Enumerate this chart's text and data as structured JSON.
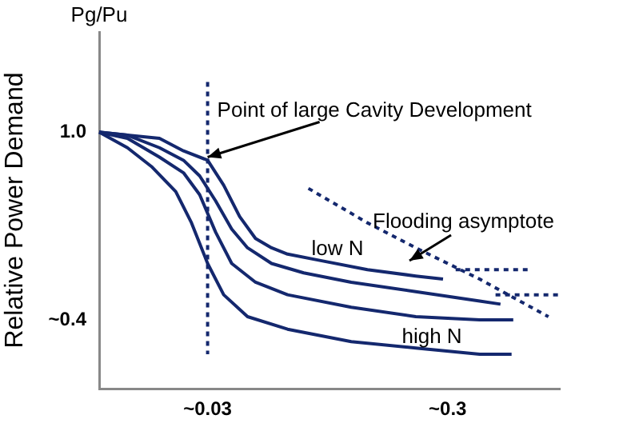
{
  "chart_data": {
    "type": "line",
    "ylabel": "Relative Power Demand",
    "log": "x",
    "xlim": [
      0.0106,
      0.88
    ],
    "ylim": [
      0.18,
      1.32
    ],
    "xticks": [
      {
        "value": 0.03,
        "label": "~0.03"
      },
      {
        "value": 0.3,
        "label": "~0.3"
      }
    ],
    "yticks": [
      {
        "value": 1.0,
        "label": "1.0"
      },
      {
        "value": 0.4,
        "label": "~0.4"
      }
    ],
    "grid": false,
    "legend": false,
    "marker": "none",
    "annotations": [
      "Pg/Pu",
      {
        "text": "Point of large Cavity Development",
        "x": 0.03,
        "y": 0.92
      },
      "Flooding asymptote",
      "low N",
      "high N"
    ],
    "series": [
      {
        "color": "#14286e",
        "line_style": "solid",
        "x": [
          0.0106,
          0.0139,
          0.0189,
          0.0238,
          0.03,
          0.035,
          0.0408,
          0.0475,
          0.0554,
          0.0646,
          0.0879,
          0.139,
          0.221,
          0.287
        ],
        "values": [
          1.0,
          0.99,
          0.98,
          0.94,
          0.91,
          0.83,
          0.73,
          0.66,
          0.63,
          0.61,
          0.59,
          0.56,
          0.54,
          0.53
        ]
      },
      {
        "color": "#14286e",
        "line_style": "solid",
        "x": [
          0.0106,
          0.0139,
          0.0189,
          0.0238,
          0.0278,
          0.0324,
          0.0378,
          0.044,
          0.0554,
          0.0754,
          0.119,
          0.221,
          0.408,
          0.498
        ],
        "values": [
          1.0,
          0.99,
          0.95,
          0.91,
          0.86,
          0.78,
          0.69,
          0.63,
          0.58,
          0.55,
          0.52,
          0.49,
          0.46,
          0.45
        ]
      },
      {
        "color": "#14286e",
        "line_style": "solid",
        "x": [
          0.0106,
          0.0139,
          0.0189,
          0.0238,
          0.0278,
          0.0324,
          0.0378,
          0.0475,
          0.0646,
          0.119,
          0.221,
          0.408,
          0.563
        ],
        "values": [
          1.0,
          0.98,
          0.92,
          0.87,
          0.8,
          0.68,
          0.58,
          0.52,
          0.48,
          0.44,
          0.41,
          0.4,
          0.4
        ]
      },
      {
        "color": "#14286e",
        "line_style": "solid",
        "x": [
          0.0106,
          0.0139,
          0.0175,
          0.0221,
          0.0257,
          0.03,
          0.035,
          0.044,
          0.0646,
          0.119,
          0.221,
          0.408,
          0.554
        ],
        "values": [
          1.0,
          0.95,
          0.89,
          0.81,
          0.71,
          0.58,
          0.48,
          0.41,
          0.37,
          0.33,
          0.31,
          0.29,
          0.29
        ]
      },
      {
        "color": "#14286e",
        "line_style": "dashed",
        "x": [
          0.03,
          0.03
        ],
        "values": [
          1.16,
          0.29
        ]
      },
      {
        "color": "#14286e",
        "line_style": "dashed",
        "x": [
          0.0789,
          0.139,
          0.221,
          0.408,
          0.789
        ],
        "values": [
          0.82,
          0.71,
          0.63,
          0.53,
          0.41
        ]
      },
      {
        "color": "#14286e",
        "line_style": "dashed",
        "x": [
          0.324,
          0.646
        ],
        "values": [
          0.56,
          0.56
        ]
      },
      {
        "color": "#14286e",
        "line_style": "dashed",
        "x": [
          0.475,
          0.879
        ],
        "values": [
          0.48,
          0.48
        ]
      }
    ]
  }
}
